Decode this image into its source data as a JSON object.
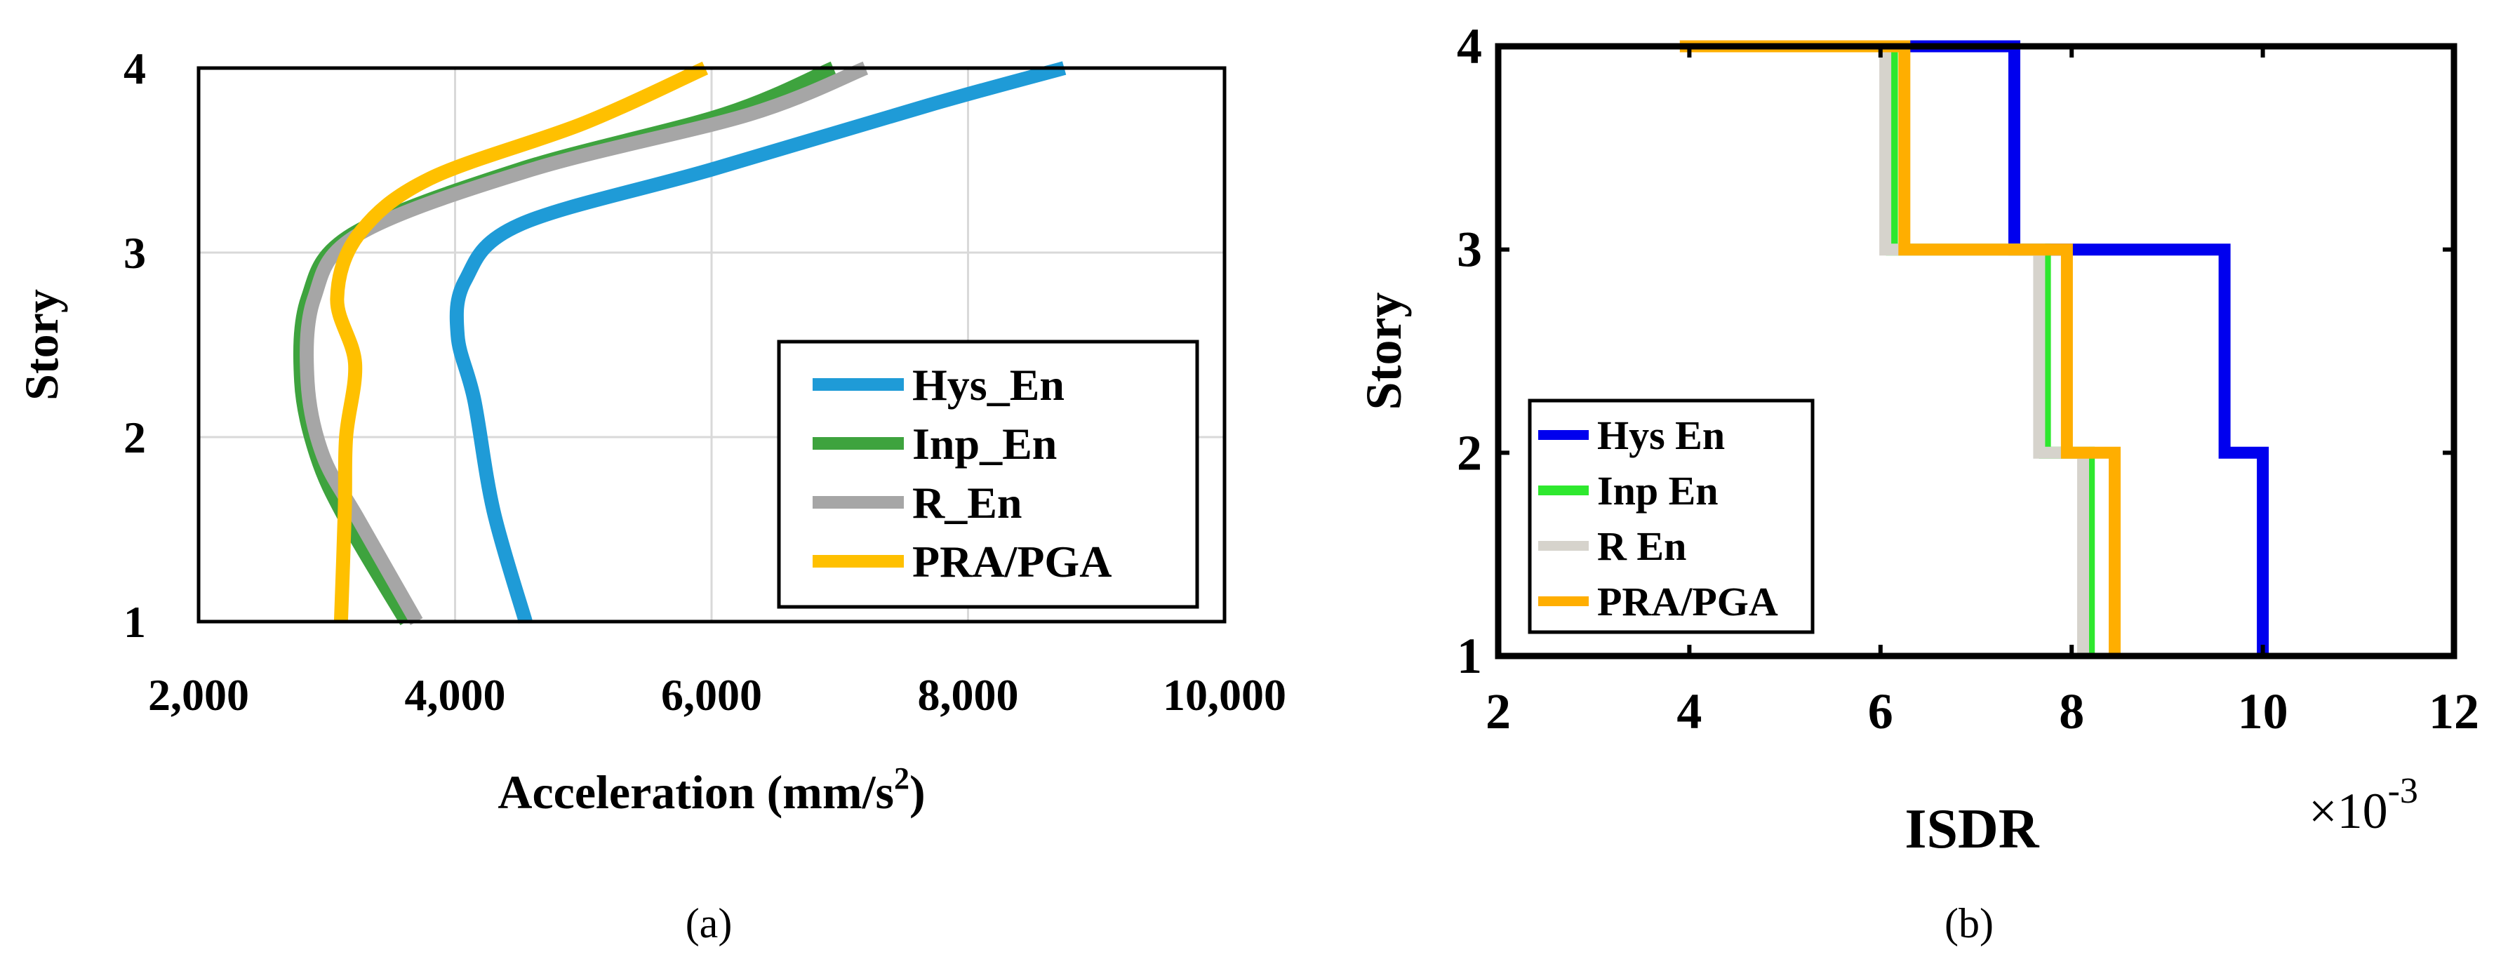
{
  "chart_data": [
    {
      "type": "line",
      "title": "",
      "xlabel": "Acceleration (mm/s",
      "xlabel_sup": "2",
      "xlabel_end": ")",
      "ylabel": "Story",
      "xlim": [
        2000,
        10000
      ],
      "ylim": [
        1,
        4
      ],
      "x_ticks": [
        2000,
        4000,
        6000,
        8000,
        10000
      ],
      "x_tick_labels": [
        "2,000",
        "4,000",
        "6,000",
        "8,000",
        "10,000"
      ],
      "y_ticks": [
        1,
        2,
        3,
        4
      ],
      "y_tick_labels": [
        "1",
        "2",
        "3",
        "4"
      ],
      "grid": true,
      "legend_position": "bottom-right",
      "caption": "(a)",
      "series": [
        {
          "name": "Hys_En",
          "color": "#1f9bd7",
          "points": [
            [
              4550,
              1
            ],
            [
              4300,
              1.6
            ],
            [
              4150,
              2.2
            ],
            [
              4020,
              2.55
            ],
            [
              4080,
              2.85
            ],
            [
              4500,
              3.15
            ],
            [
              6000,
              3.45
            ],
            [
              7700,
              3.8
            ],
            [
              8750,
              4
            ]
          ]
        },
        {
          "name": "Inp_En",
          "color": "#3ea33e",
          "points": [
            [
              3620,
              1
            ],
            [
              3150,
              1.55
            ],
            [
              2920,
              1.9
            ],
            [
              2800,
              2.3
            ],
            [
              2850,
              2.75
            ],
            [
              3200,
              3.1
            ],
            [
              4500,
              3.45
            ],
            [
              6100,
              3.75
            ],
            [
              6950,
              4
            ]
          ]
        },
        {
          "name": "R_En",
          "color": "#a6a6a6",
          "points": [
            [
              3700,
              1
            ],
            [
              3250,
              1.55
            ],
            [
              2970,
              1.9
            ],
            [
              2850,
              2.3
            ],
            [
              2900,
              2.75
            ],
            [
              3250,
              3.1
            ],
            [
              4600,
              3.45
            ],
            [
              6300,
              3.75
            ],
            [
              7200,
              4
            ]
          ]
        },
        {
          "name": "PRA/PGA",
          "color": "#ffc000",
          "points": [
            [
              3110,
              1
            ],
            [
              3140,
              1.6
            ],
            [
              3150,
              2.0
            ],
            [
              3220,
              2.4
            ],
            [
              3080,
              2.75
            ],
            [
              3250,
              3.1
            ],
            [
              3800,
              3.4
            ],
            [
              5000,
              3.7
            ],
            [
              5950,
              4
            ]
          ]
        }
      ]
    },
    {
      "type": "line",
      "title": "",
      "xlabel": "ISDR",
      "ylabel": "Story",
      "multiplier": "×10",
      "multiplier_exp": "-3",
      "xlim": [
        2,
        12
      ],
      "ylim": [
        1,
        4
      ],
      "x_ticks": [
        2,
        4,
        6,
        8,
        10,
        12
      ],
      "x_tick_labels": [
        "2",
        "4",
        "6",
        "8",
        "10",
        "12"
      ],
      "y_ticks": [
        1,
        2,
        3,
        4
      ],
      "y_tick_labels": [
        "1",
        "2",
        "3",
        "4"
      ],
      "grid": false,
      "legend_position": "bottom-left",
      "caption": "(b)",
      "series": [
        {
          "name": "Hys En",
          "color": "#0000ee",
          "points": [
            [
              10.0,
              1
            ],
            [
              10.0,
              2
            ],
            [
              9.6,
              2
            ],
            [
              9.6,
              3
            ],
            [
              7.4,
              3
            ],
            [
              7.4,
              4
            ],
            [
              6.2,
              4
            ]
          ]
        },
        {
          "name": "Inp En",
          "color": "#2ee82e",
          "points": [
            [
              8.18,
              1
            ],
            [
              8.18,
              2
            ],
            [
              7.72,
              2
            ],
            [
              7.72,
              3
            ],
            [
              6.12,
              3
            ],
            [
              6.12,
              4
            ],
            [
              6.0,
              4
            ]
          ]
        },
        {
          "name": "R En",
          "color": "#d6d3cc",
          "points": [
            [
              8.12,
              1
            ],
            [
              8.12,
              2
            ],
            [
              7.66,
              2
            ],
            [
              7.66,
              3
            ],
            [
              6.05,
              3
            ],
            [
              6.05,
              4
            ],
            [
              5.95,
              4
            ]
          ]
        },
        {
          "name": "PRA/PGA",
          "color": "#ffae00",
          "points": [
            [
              8.45,
              1
            ],
            [
              8.45,
              2
            ],
            [
              7.95,
              2
            ],
            [
              7.95,
              3
            ],
            [
              6.25,
              3
            ],
            [
              6.25,
              4
            ],
            [
              3.9,
              4
            ]
          ]
        }
      ]
    }
  ]
}
